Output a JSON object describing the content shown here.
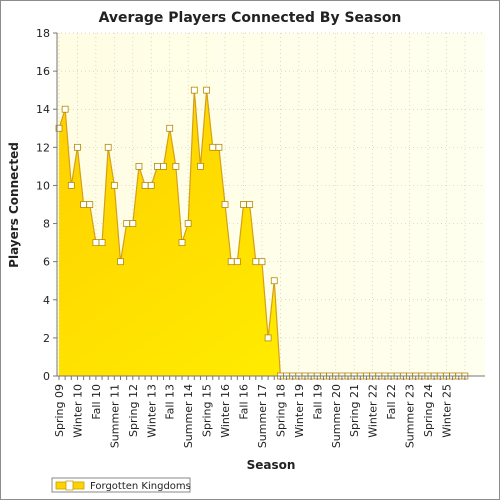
{
  "chart_data": {
    "type": "area",
    "title": "Average Players Connected By Season",
    "xlabel": "Season",
    "ylabel": "Players Connected",
    "ylim": [
      0,
      18
    ],
    "yticks": [
      0,
      2,
      4,
      6,
      8,
      10,
      12,
      14,
      16,
      18
    ],
    "grid": true,
    "legend_position": "bottom-left",
    "colors": {
      "area_top": "#ffd200",
      "area_bottom": "#fff200",
      "line": "#d4a017",
      "marker_fill": "#ffffff",
      "plot_bg_left": "#fffde6",
      "plot_bg_right": "#ffffee"
    },
    "x_labels_shown": [
      "Spring 09",
      "Winter 10",
      "Fall 10",
      "Summer 11",
      "Spring 12",
      "Winter 13",
      "Fall 13",
      "Summer 14",
      "Spring 15",
      "Winter 16",
      "Fall 16",
      "Summer 17",
      "Spring 18",
      "Winter 19",
      "Fall 19",
      "Summer 20",
      "Spring 21",
      "Winter 22",
      "Fall 22",
      "Summer 23",
      "Spring 24",
      "Winter 25"
    ],
    "series": [
      {
        "name": "Forgotten Kingdoms",
        "values": [
          13,
          14,
          10,
          12,
          9,
          9,
          7,
          7,
          12,
          10,
          6,
          8,
          8,
          11,
          10,
          10,
          11,
          11,
          13,
          11,
          7,
          8,
          15,
          11,
          15,
          12,
          12,
          9,
          6,
          6,
          9,
          9,
          6,
          6,
          2,
          5,
          0,
          0,
          0,
          0,
          0,
          0,
          0,
          0,
          0,
          0,
          0,
          0,
          0,
          0,
          0,
          0,
          0,
          0,
          0,
          0,
          0,
          0,
          0,
          0,
          0,
          0,
          0,
          0,
          0,
          0,
          0
        ]
      }
    ]
  }
}
